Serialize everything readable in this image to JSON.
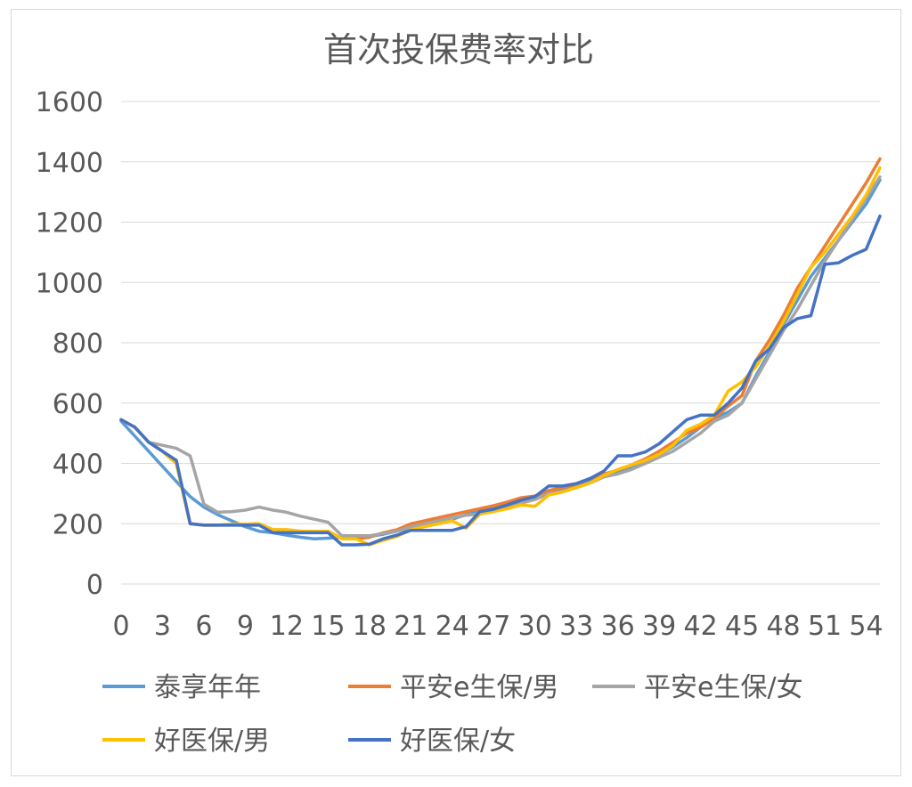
{
  "chart_data": {
    "type": "line",
    "title": "首次投保费率对比",
    "xlabel": "",
    "ylabel": "",
    "x": [
      0,
      1,
      2,
      3,
      4,
      5,
      6,
      7,
      8,
      9,
      10,
      11,
      12,
      13,
      14,
      15,
      16,
      17,
      18,
      19,
      20,
      21,
      22,
      23,
      24,
      25,
      26,
      27,
      28,
      29,
      30,
      31,
      32,
      33,
      34,
      35,
      36,
      37,
      38,
      39,
      40,
      41,
      42,
      43,
      44,
      45,
      46,
      47,
      48,
      49,
      50,
      51,
      52,
      53,
      54,
      55
    ],
    "x_ticks": [
      "0",
      "3",
      "6",
      "9",
      "12",
      "15",
      "18",
      "21",
      "24",
      "27",
      "30",
      "33",
      "36",
      "39",
      "42",
      "45",
      "48",
      "51",
      "54"
    ],
    "x_tick_values": [
      0,
      3,
      6,
      9,
      12,
      15,
      18,
      21,
      24,
      27,
      30,
      33,
      36,
      39,
      42,
      45,
      48,
      51,
      54
    ],
    "ylim": [
      0,
      1600
    ],
    "y_ticks": [
      "0",
      "200",
      "400",
      "600",
      "800",
      "1000",
      "1200",
      "1400",
      "1600"
    ],
    "y_tick_values": [
      0,
      200,
      400,
      600,
      800,
      1000,
      1200,
      1400,
      1600
    ],
    "grid": true,
    "legend_position": "bottom",
    "series": [
      {
        "name": "泰享年年",
        "color": "#5b9bd5",
        "values": [
          540,
          490,
          440,
          390,
          340,
          290,
          255,
          230,
          210,
          190,
          175,
          170,
          162,
          155,
          150,
          152,
          155,
          155,
          158,
          165,
          175,
          185,
          195,
          205,
          215,
          230,
          240,
          250,
          262,
          275,
          288,
          300,
          315,
          330,
          345,
          362,
          372,
          390,
          410,
          430,
          455,
          485,
          520,
          550,
          570,
          600,
          690,
          770,
          860,
          940,
          1020,
          1080,
          1140,
          1200,
          1260,
          1340
        ]
      },
      {
        "name": "平安e生保/男",
        "color": "#ed7d31",
        "values": [
          545,
          520,
          470,
          440,
          400,
          200,
          195,
          195,
          198,
          198,
          200,
          180,
          180,
          175,
          175,
          175,
          150,
          150,
          155,
          170,
          180,
          200,
          210,
          220,
          230,
          240,
          250,
          260,
          272,
          286,
          292,
          310,
          320,
          330,
          350,
          365,
          378,
          395,
          415,
          440,
          470,
          500,
          520,
          550,
          590,
          625,
          740,
          810,
          890,
          980,
          1050,
          1120,
          1190,
          1260,
          1330,
          1410
        ]
      },
      {
        "name": "平安e生保/女",
        "color": "#a5a5a5",
        "values": [
          545,
          520,
          470,
          460,
          450,
          425,
          265,
          238,
          240,
          245,
          255,
          245,
          238,
          225,
          215,
          205,
          160,
          160,
          160,
          168,
          175,
          190,
          200,
          210,
          220,
          228,
          232,
          245,
          255,
          268,
          280,
          300,
          308,
          320,
          335,
          355,
          365,
          380,
          400,
          420,
          440,
          470,
          500,
          540,
          560,
          600,
          680,
          760,
          840,
          910,
          990,
          1070,
          1140,
          1210,
          1280,
          1350
        ]
      },
      {
        "name": "好医保/男",
        "color": "#ffc000",
        "values": [
          545,
          520,
          470,
          440,
          400,
          200,
          195,
          195,
          198,
          198,
          200,
          180,
          180,
          175,
          175,
          175,
          150,
          150,
          130,
          145,
          158,
          180,
          190,
          200,
          210,
          185,
          232,
          240,
          250,
          262,
          258,
          295,
          305,
          320,
          335,
          360,
          380,
          395,
          410,
          430,
          460,
          510,
          530,
          560,
          640,
          670,
          720,
          790,
          870,
          960,
          1050,
          1100,
          1160,
          1220,
          1290,
          1380
        ]
      },
      {
        "name": "好医保/女",
        "color": "#4472c4",
        "values": [
          545,
          520,
          470,
          440,
          410,
          200,
          195,
          195,
          195,
          195,
          195,
          170,
          170,
          170,
          170,
          170,
          130,
          130,
          132,
          150,
          162,
          178,
          178,
          178,
          178,
          190,
          240,
          248,
          262,
          278,
          290,
          325,
          325,
          333,
          350,
          375,
          425,
          425,
          438,
          465,
          505,
          545,
          560,
          560,
          600,
          650,
          740,
          780,
          850,
          880,
          890,
          1060,
          1065,
          1090,
          1110,
          1220
        ]
      }
    ]
  }
}
